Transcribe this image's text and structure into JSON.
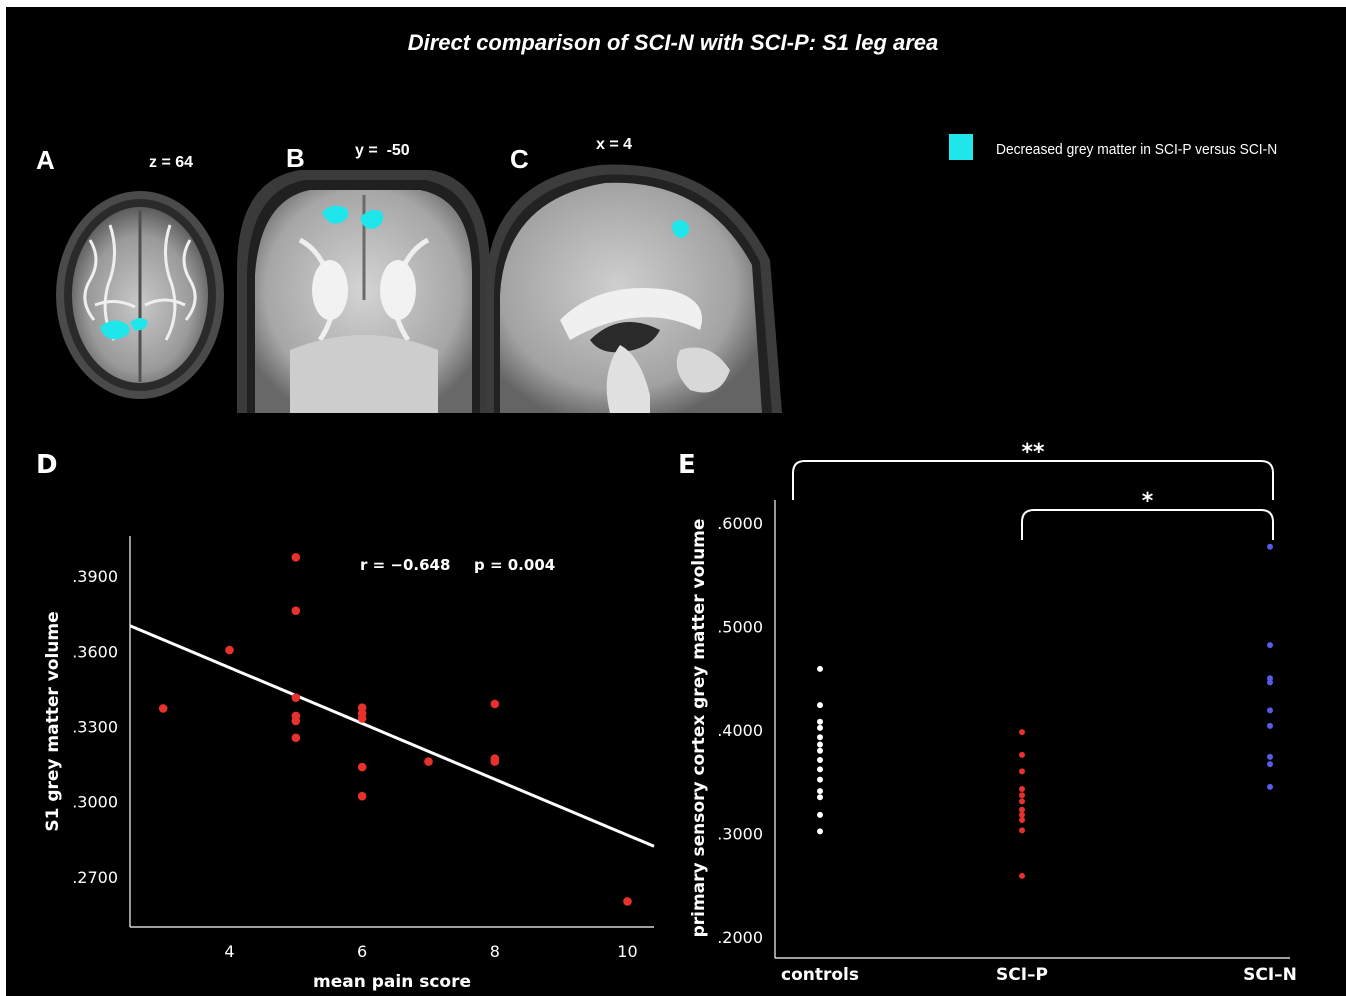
{
  "title": "Direct comparison of SCI-N with SCI-P: S1 leg area",
  "panels": {
    "a": {
      "letter": "A",
      "coord": "z = 64"
    },
    "b": {
      "letter": "B",
      "coord": "y =  -50"
    },
    "c": {
      "letter": "C",
      "coord": "x = 4"
    },
    "d": {
      "letter": "D"
    },
    "e": {
      "letter": "E"
    }
  },
  "legend": {
    "label": "Decreased grey matter in SCI-P versus SCI-N",
    "color": "#1ee6ea"
  },
  "colors": {
    "background": "#000000",
    "axes": "#ffffff",
    "red": "#e8302c",
    "blue": "#5a5ae8",
    "white": "#ffffff",
    "highlight": "#1ee6ea"
  },
  "chart_data": [
    {
      "type": "scatter",
      "xlabel": "mean pain score",
      "ylabel": "S1 grey matter volume",
      "xlim": [
        2.5,
        10.4
      ],
      "ylim": [
        0.25,
        0.406
      ],
      "xticks": [
        4,
        6,
        8,
        10
      ],
      "yticks": [
        0.27,
        0.3,
        0.33,
        0.36,
        0.39
      ],
      "ytick_labels": [
        ".2700",
        ".3000",
        ".3300",
        ".3600",
        ".3900"
      ],
      "annotation": {
        "r": "r = −0.648",
        "p": "p = 0.004"
      },
      "fit_line": {
        "x": [
          2.5,
          10.4
        ],
        "y": [
          0.3702,
          0.2822
        ]
      },
      "points": [
        {
          "x": 3,
          "y": 0.3372
        },
        {
          "x": 4,
          "y": 0.3605
        },
        {
          "x": 5,
          "y": 0.3975
        },
        {
          "x": 5,
          "y": 0.3762
        },
        {
          "x": 5,
          "y": 0.3415
        },
        {
          "x": 5,
          "y": 0.3342
        },
        {
          "x": 5,
          "y": 0.3322
        },
        {
          "x": 5,
          "y": 0.3255
        },
        {
          "x": 6,
          "y": 0.3375
        },
        {
          "x": 6,
          "y": 0.3352
        },
        {
          "x": 6,
          "y": 0.3332
        },
        {
          "x": 6,
          "y": 0.3138
        },
        {
          "x": 6,
          "y": 0.3022
        },
        {
          "x": 7,
          "y": 0.316
        },
        {
          "x": 8,
          "y": 0.339
        },
        {
          "x": 8,
          "y": 0.3172
        },
        {
          "x": 8,
          "y": 0.316
        },
        {
          "x": 10,
          "y": 0.2602
        }
      ]
    },
    {
      "type": "scatter",
      "ylabel": "primary sensory cortex grey matter volume",
      "categories": [
        "controls",
        "SCI–P",
        "SCI–N"
      ],
      "ylim": [
        0.192,
        0.62
      ],
      "yticks": [
        0.2,
        0.3,
        0.4,
        0.5,
        0.6
      ],
      "ytick_labels": [
        ".2000",
        ".3000",
        ".4000",
        ".5000",
        ".6000"
      ],
      "significance": [
        {
          "from": "controls",
          "to": "SCI–N",
          "label": "**"
        },
        {
          "from": "SCI–P",
          "to": "SCI–N",
          "label": "*"
        }
      ],
      "series": [
        {
          "category": "controls",
          "color": "white",
          "values": [
            0.459,
            0.424,
            0.408,
            0.402,
            0.393,
            0.386,
            0.38,
            0.371,
            0.362,
            0.352,
            0.341,
            0.335,
            0.318,
            0.302
          ]
        },
        {
          "category": "SCI–P",
          "color": "red",
          "values": [
            0.398,
            0.376,
            0.36,
            0.343,
            0.337,
            0.331,
            0.323,
            0.318,
            0.313,
            0.303,
            0.259
          ]
        },
        {
          "category": "SCI–N",
          "color": "blue",
          "values": [
            0.577,
            0.482,
            0.45,
            0.446,
            0.419,
            0.404,
            0.374,
            0.367,
            0.345
          ]
        }
      ]
    }
  ]
}
